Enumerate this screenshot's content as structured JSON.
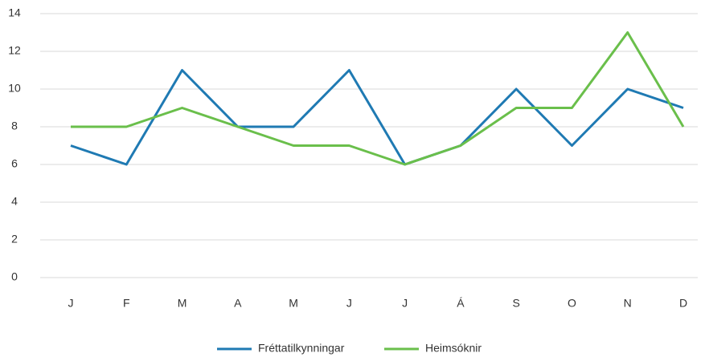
{
  "chart_data": {
    "type": "line",
    "categories": [
      "J",
      "F",
      "M",
      "A",
      "M",
      "J",
      "J",
      "Á",
      "S",
      "O",
      "N",
      "D"
    ],
    "series": [
      {
        "name": "Fréttatilkynningar",
        "color": "#1f7ab3",
        "values": [
          7,
          6,
          11,
          8,
          8,
          11,
          6,
          7,
          10,
          7,
          10,
          9
        ]
      },
      {
        "name": "Heimsóknir",
        "color": "#6abf4b",
        "values": [
          8,
          8,
          9,
          8,
          7,
          7,
          6,
          7,
          9,
          9,
          13,
          8
        ]
      }
    ],
    "ylim": [
      0,
      14
    ],
    "yticks": [
      0,
      2,
      4,
      6,
      8,
      10,
      12,
      14
    ],
    "grid": true,
    "legend": "bottom"
  }
}
